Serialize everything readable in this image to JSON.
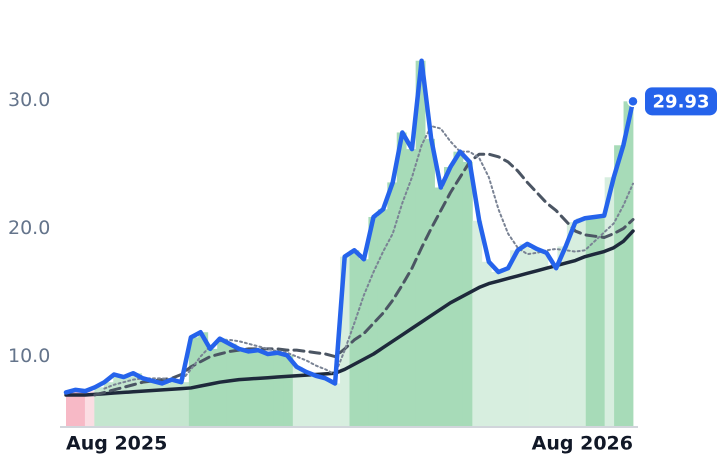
{
  "chart_data": {
    "type": "line",
    "categories": [
      "Aug 2025",
      null,
      null,
      null,
      null,
      null,
      null,
      null,
      null,
      null,
      null,
      null,
      null,
      null,
      null,
      null,
      null,
      null,
      null,
      null,
      null,
      null,
      null,
      null,
      null,
      null,
      null,
      null,
      null,
      null,
      null,
      null,
      null,
      null,
      null,
      null,
      null,
      null,
      null,
      null,
      null,
      null,
      null,
      null,
      null,
      null,
      null,
      null,
      null,
      null,
      null,
      null,
      null,
      null,
      null,
      null,
      null,
      null,
      null,
      "Aug 2026"
    ],
    "ylim": [
      4.5,
      35.5
    ],
    "yticks": [
      {
        "value": 10,
        "label": "10.0"
      },
      {
        "value": 20,
        "label": "20.0"
      },
      {
        "value": 30,
        "label": "30.0"
      }
    ],
    "series": [
      {
        "color": "#2563eb",
        "dash": "solid",
        "width": 4.5,
        "values": [
          7.2,
          7.4,
          7.3,
          7.6,
          8.0,
          8.6,
          8.4,
          8.7,
          8.3,
          8.1,
          7.9,
          8.2,
          8.0,
          11.5,
          11.9,
          10.6,
          11.4,
          11.0,
          10.6,
          10.4,
          10.5,
          10.2,
          10.3,
          10.1,
          9.2,
          8.8,
          8.5,
          8.3,
          7.9,
          17.8,
          18.3,
          17.6,
          20.9,
          21.5,
          23.6,
          27.5,
          26.2,
          33.1,
          27.0,
          23.2,
          24.8,
          26.0,
          25.2,
          20.6,
          17.4,
          16.6,
          16.9,
          18.3,
          18.8,
          18.4,
          18.1,
          16.9,
          18.6,
          20.5,
          20.8,
          20.9,
          21.0,
          24.0,
          26.5,
          29.93
        ]
      },
      {
        "color": "#7a8394",
        "dash": "dotted",
        "width": 2,
        "values": [
          null,
          null,
          null,
          null,
          7.5,
          7.8,
          8.0,
          8.2,
          8.3,
          8.3,
          8.3,
          8.2,
          8.1,
          9.0,
          10.0,
          10.8,
          11.2,
          11.3,
          11.2,
          11.0,
          10.8,
          10.6,
          10.4,
          10.3,
          10.0,
          9.7,
          9.3,
          9.0,
          8.6,
          10.5,
          12.6,
          14.8,
          16.6,
          18.2,
          19.6,
          22.0,
          24.0,
          26.5,
          28.0,
          27.8,
          26.8,
          26.0,
          26.0,
          25.5,
          24.0,
          21.5,
          19.6,
          18.5,
          18.0,
          18.1,
          18.3,
          18.4,
          18.3,
          18.2,
          18.3,
          19.0,
          19.7,
          20.4,
          21.8,
          23.5
        ]
      },
      {
        "color": "#4b5563",
        "dash": "dashed",
        "width": 3,
        "values": [
          null,
          null,
          null,
          7.0,
          7.2,
          7.4,
          7.6,
          7.8,
          8.0,
          8.1,
          8.2,
          8.3,
          8.6,
          9.2,
          9.6,
          10.0,
          10.2,
          10.4,
          10.5,
          10.6,
          10.6,
          10.6,
          10.6,
          10.5,
          10.5,
          10.4,
          10.3,
          10.2,
          10.0,
          10.6,
          11.3,
          11.8,
          12.6,
          13.4,
          14.4,
          15.6,
          16.9,
          18.5,
          20.0,
          21.4,
          22.8,
          24.0,
          25.2,
          25.8,
          25.8,
          25.6,
          25.2,
          24.5,
          23.6,
          22.8,
          22.0,
          21.4,
          20.6,
          19.8,
          19.5,
          19.4,
          19.3,
          19.6,
          20.0,
          20.7
        ]
      },
      {
        "color": "#1e293b",
        "dash": "solid",
        "width": 3.5,
        "values": [
          7.0,
          7.0,
          7.0,
          7.05,
          7.1,
          7.15,
          7.2,
          7.25,
          7.3,
          7.35,
          7.4,
          7.45,
          7.5,
          7.55,
          7.7,
          7.85,
          8.0,
          8.1,
          8.2,
          8.25,
          8.3,
          8.35,
          8.4,
          8.45,
          8.5,
          8.55,
          8.6,
          8.65,
          8.7,
          9.0,
          9.4,
          9.8,
          10.2,
          10.7,
          11.2,
          11.7,
          12.2,
          12.7,
          13.2,
          13.7,
          14.2,
          14.6,
          15.0,
          15.4,
          15.7,
          15.9,
          16.1,
          16.3,
          16.5,
          16.7,
          16.9,
          17.1,
          17.3,
          17.5,
          17.8,
          18.0,
          18.2,
          18.5,
          19.0,
          19.8
        ]
      }
    ],
    "bars": {
      "values": [
        7.2,
        7.4,
        7.3,
        7.6,
        8.0,
        8.6,
        8.4,
        8.7,
        8.3,
        8.1,
        7.9,
        8.2,
        8.0,
        11.5,
        11.9,
        10.6,
        11.4,
        11.0,
        10.6,
        10.4,
        10.5,
        10.2,
        10.3,
        10.1,
        9.2,
        8.8,
        8.5,
        8.3,
        7.9,
        17.8,
        18.3,
        17.6,
        20.9,
        21.5,
        23.6,
        27.5,
        26.2,
        33.1,
        27.0,
        23.2,
        24.8,
        26.0,
        25.2,
        20.6,
        17.4,
        16.6,
        16.9,
        18.3,
        18.8,
        18.4,
        18.1,
        16.9,
        18.6,
        20.5,
        20.8,
        20.9,
        21.0,
        24.0,
        26.5,
        29.93
      ],
      "colors": [
        "#f7b9c6",
        "#f7b9c6",
        "#fbdde3",
        "#c4e6cf",
        "#c4e6cf",
        "#c4e6cf",
        "#c4e6cf",
        "#c4e6cf",
        "#c4e6cf",
        "#c4e6cf",
        "#c4e6cf",
        "#c4e6cf",
        "#c4e6cf",
        "#a7dbb8",
        "#a7dbb8",
        "#a7dbb8",
        "#a7dbb8",
        "#a7dbb8",
        "#a7dbb8",
        "#a7dbb8",
        "#a7dbb8",
        "#a7dbb8",
        "#a7dbb8",
        "#a7dbb8",
        "#d7eedf",
        "#d7eedf",
        "#d7eedf",
        "#d7eedf",
        "#d7eedf",
        "#d7eedf",
        "#a7dbb8",
        "#a7dbb8",
        "#a7dbb8",
        "#a7dbb8",
        "#a7dbb8",
        "#a7dbb8",
        "#a7dbb8",
        "#a7dbb8",
        "#a7dbb8",
        "#a7dbb8",
        "#a7dbb8",
        "#a7dbb8",
        "#a7dbb8",
        "#d7eedf",
        "#d7eedf",
        "#d7eedf",
        "#d7eedf",
        "#d7eedf",
        "#d7eedf",
        "#d7eedf",
        "#d7eedf",
        "#d7eedf",
        "#d7eedf",
        "#d7eedf",
        "#d7eedf",
        "#a7dbb8",
        "#a7dbb8",
        "#d7eedf",
        "#a7dbb8",
        "#a7dbb8"
      ]
    }
  }
}
